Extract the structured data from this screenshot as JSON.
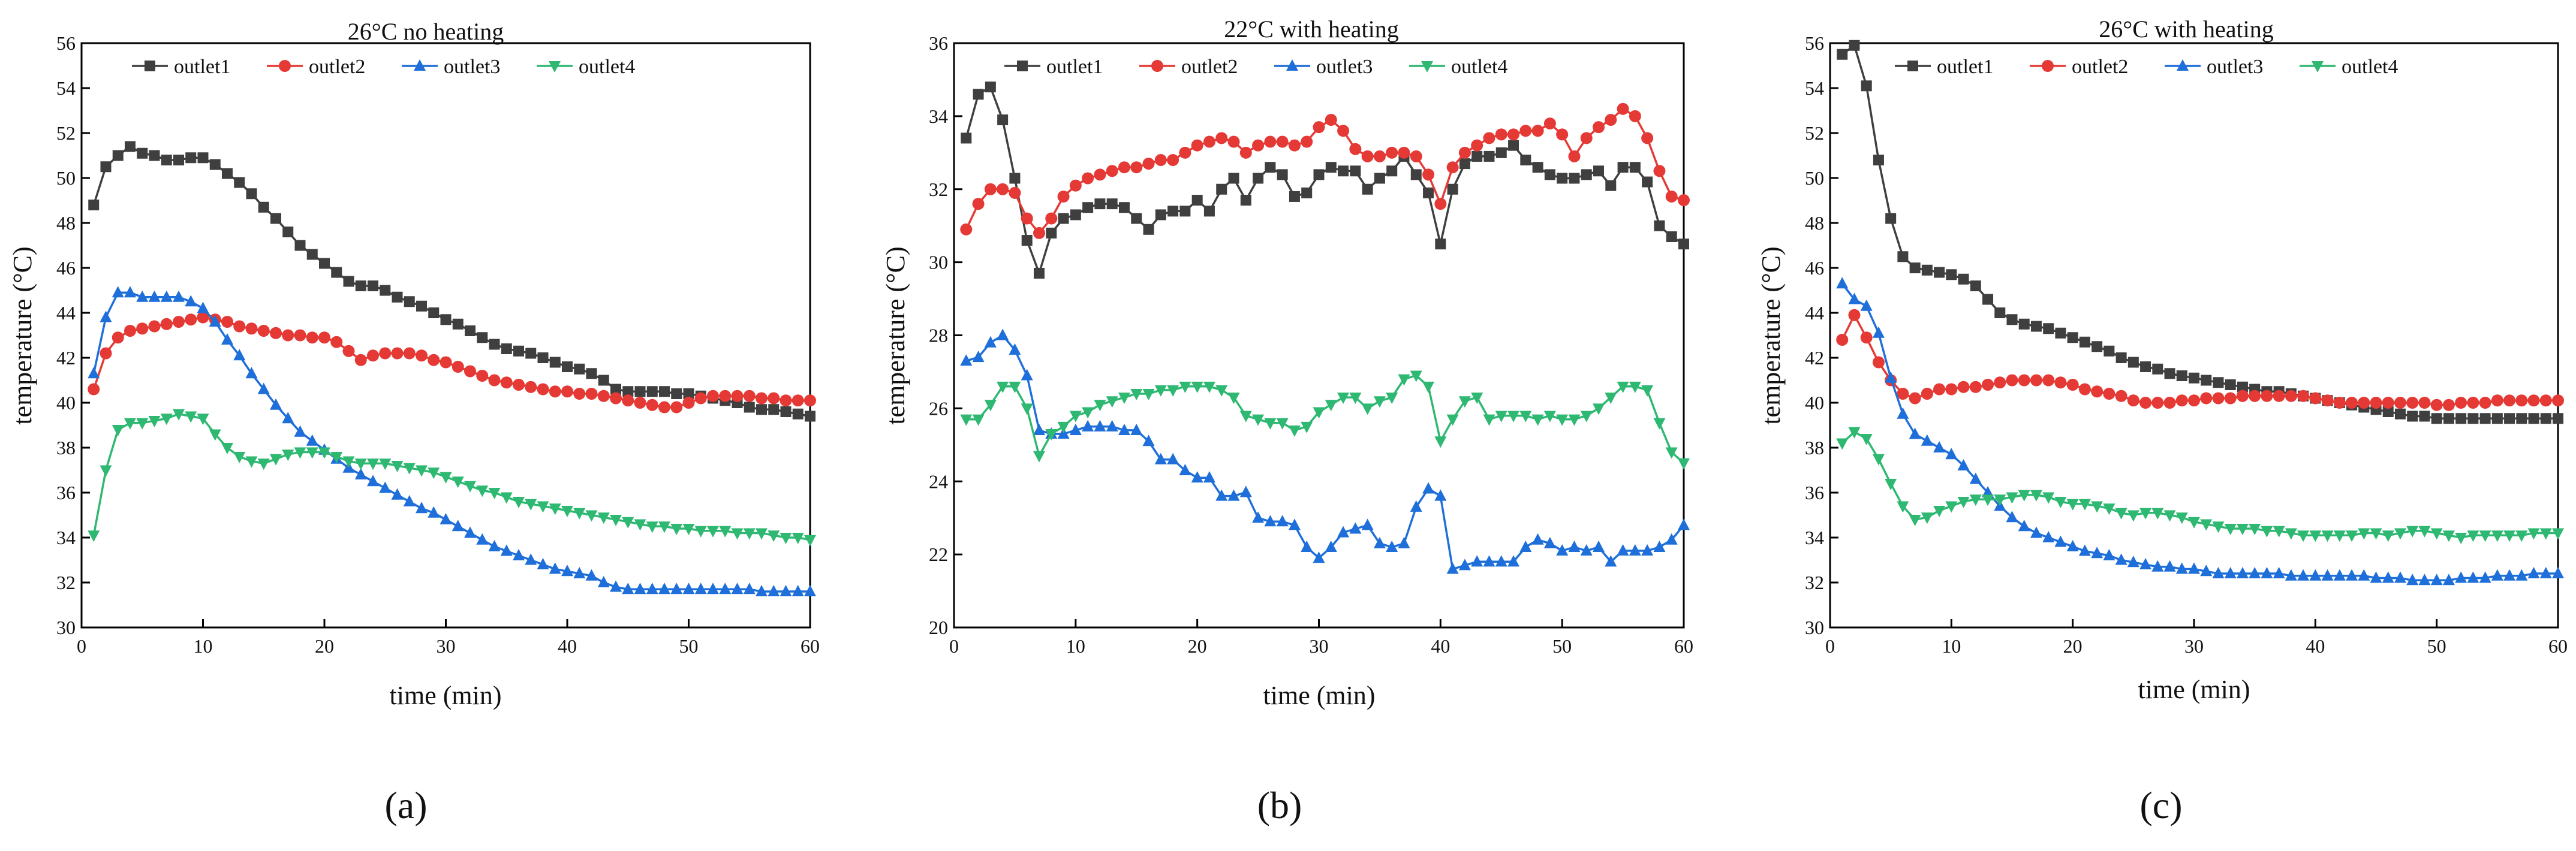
{
  "colors": {
    "outlet1": "#3f3f3f",
    "outlet2": "#e53935",
    "outlet3": "#1e6fd9",
    "outlet4": "#2eb872"
  },
  "chart_data": [
    {
      "type": "line",
      "panel_label": "(a)",
      "title": "26°C no heating",
      "xlabel": "time (min)",
      "ylabel": "temperature (°C)",
      "xlim": [
        0,
        60
      ],
      "ylim": [
        30,
        56
      ],
      "xticks": [
        0,
        10,
        20,
        30,
        40,
        50,
        60
      ],
      "yticks": [
        30,
        32,
        34,
        36,
        38,
        40,
        42,
        44,
        46,
        48,
        50,
        52,
        54,
        56
      ],
      "series": [
        {
          "name": "outlet1",
          "marker": "square",
          "values": [
            48.8,
            50.5,
            51.0,
            51.4,
            51.1,
            51.0,
            50.8,
            50.8,
            50.9,
            50.9,
            50.6,
            50.2,
            49.8,
            49.3,
            48.7,
            48.2,
            47.6,
            47.0,
            46.6,
            46.2,
            45.8,
            45.4,
            45.2,
            45.2,
            45.0,
            44.7,
            44.5,
            44.3,
            44.0,
            43.7,
            43.5,
            43.2,
            42.9,
            42.6,
            42.4,
            42.3,
            42.2,
            42.0,
            41.8,
            41.6,
            41.5,
            41.3,
            41.0,
            40.6,
            40.5,
            40.5,
            40.5,
            40.5,
            40.4,
            40.4,
            40.3,
            40.2,
            40.1,
            40.0,
            39.8,
            39.7,
            39.7,
            39.6,
            39.5,
            39.4
          ]
        },
        {
          "name": "outlet2",
          "marker": "circle",
          "values": [
            40.6,
            42.2,
            42.9,
            43.2,
            43.3,
            43.4,
            43.5,
            43.6,
            43.7,
            43.8,
            43.7,
            43.6,
            43.4,
            43.3,
            43.2,
            43.1,
            43.0,
            43.0,
            42.9,
            42.9,
            42.7,
            42.3,
            41.9,
            42.1,
            42.2,
            42.2,
            42.2,
            42.1,
            41.9,
            41.8,
            41.6,
            41.4,
            41.2,
            41.0,
            40.9,
            40.8,
            40.7,
            40.6,
            40.5,
            40.5,
            40.4,
            40.4,
            40.3,
            40.2,
            40.1,
            40.0,
            39.9,
            39.8,
            39.8,
            40.0,
            40.2,
            40.3,
            40.3,
            40.3,
            40.3,
            40.2,
            40.2,
            40.1,
            40.1,
            40.1
          ]
        },
        {
          "name": "outlet3",
          "marker": "triangle-up",
          "values": [
            41.3,
            43.8,
            44.9,
            44.9,
            44.7,
            44.7,
            44.7,
            44.7,
            44.5,
            44.2,
            43.6,
            42.8,
            42.1,
            41.3,
            40.6,
            39.9,
            39.3,
            38.7,
            38.3,
            37.9,
            37.5,
            37.1,
            36.8,
            36.5,
            36.2,
            35.9,
            35.6,
            35.3,
            35.1,
            34.8,
            34.5,
            34.2,
            33.9,
            33.6,
            33.4,
            33.2,
            33.0,
            32.8,
            32.6,
            32.5,
            32.4,
            32.3,
            32.0,
            31.8,
            31.7,
            31.7,
            31.7,
            31.7,
            31.7,
            31.7,
            31.7,
            31.7,
            31.7,
            31.7,
            31.7,
            31.6,
            31.6,
            31.6,
            31.6,
            31.6
          ]
        },
        {
          "name": "outlet4",
          "marker": "triangle-down",
          "values": [
            34.1,
            37.0,
            38.8,
            39.1,
            39.1,
            39.2,
            39.3,
            39.5,
            39.4,
            39.3,
            38.6,
            38.0,
            37.6,
            37.4,
            37.3,
            37.5,
            37.7,
            37.8,
            37.8,
            37.8,
            37.6,
            37.4,
            37.3,
            37.3,
            37.3,
            37.2,
            37.1,
            37.0,
            36.9,
            36.7,
            36.5,
            36.3,
            36.1,
            36.0,
            35.8,
            35.6,
            35.5,
            35.4,
            35.3,
            35.2,
            35.1,
            35.0,
            34.9,
            34.8,
            34.7,
            34.6,
            34.5,
            34.5,
            34.4,
            34.4,
            34.3,
            34.3,
            34.3,
            34.2,
            34.2,
            34.2,
            34.1,
            34.0,
            34.0,
            33.9
          ]
        }
      ]
    },
    {
      "type": "line",
      "panel_label": "(b)",
      "title": "22°C with heating",
      "xlabel": "time (min)",
      "ylabel": "temperature (°C)",
      "xlim": [
        0,
        60
      ],
      "ylim": [
        20,
        36
      ],
      "xticks": [
        0,
        10,
        20,
        30,
        40,
        50,
        60
      ],
      "yticks": [
        20,
        22,
        24,
        26,
        28,
        30,
        32,
        34,
        36
      ],
      "series": [
        {
          "name": "outlet1",
          "marker": "square",
          "values": [
            33.4,
            34.6,
            34.8,
            33.9,
            32.3,
            30.6,
            29.7,
            30.8,
            31.2,
            31.3,
            31.5,
            31.6,
            31.6,
            31.5,
            31.2,
            30.9,
            31.3,
            31.4,
            31.4,
            31.7,
            31.4,
            32.0,
            32.3,
            31.7,
            32.3,
            32.6,
            32.4,
            31.8,
            31.9,
            32.4,
            32.6,
            32.5,
            32.5,
            32.0,
            32.3,
            32.5,
            32.9,
            32.4,
            31.9,
            30.5,
            32.0,
            32.7,
            32.9,
            32.9,
            33.0,
            33.2,
            32.8,
            32.6,
            32.4,
            32.3,
            32.3,
            32.4,
            32.5,
            32.1,
            32.6,
            32.6,
            32.2,
            31.0,
            30.7,
            30.5
          ]
        },
        {
          "name": "outlet2",
          "marker": "circle",
          "values": [
            30.9,
            31.6,
            32.0,
            32.0,
            31.9,
            31.2,
            30.8,
            31.2,
            31.8,
            32.1,
            32.3,
            32.4,
            32.5,
            32.6,
            32.6,
            32.7,
            32.8,
            32.8,
            33.0,
            33.2,
            33.3,
            33.4,
            33.3,
            33.0,
            33.2,
            33.3,
            33.3,
            33.2,
            33.3,
            33.7,
            33.9,
            33.6,
            33.1,
            32.9,
            32.9,
            33.0,
            33.0,
            32.9,
            32.4,
            31.6,
            32.6,
            33.0,
            33.2,
            33.4,
            33.5,
            33.5,
            33.6,
            33.6,
            33.8,
            33.5,
            32.9,
            33.4,
            33.7,
            33.9,
            34.2,
            34.0,
            33.4,
            32.5,
            31.8,
            31.7
          ]
        },
        {
          "name": "outlet3",
          "marker": "triangle-up",
          "values": [
            27.3,
            27.4,
            27.8,
            28.0,
            27.6,
            26.9,
            25.4,
            25.3,
            25.3,
            25.4,
            25.5,
            25.5,
            25.5,
            25.4,
            25.4,
            25.1,
            24.6,
            24.6,
            24.3,
            24.1,
            24.1,
            23.6,
            23.6,
            23.7,
            23.0,
            22.9,
            22.9,
            22.8,
            22.2,
            21.9,
            22.2,
            22.6,
            22.7,
            22.8,
            22.3,
            22.2,
            22.3,
            23.3,
            23.8,
            23.6,
            21.6,
            21.7,
            21.8,
            21.8,
            21.8,
            21.8,
            22.2,
            22.4,
            22.3,
            22.1,
            22.2,
            22.1,
            22.2,
            21.8,
            22.1,
            22.1,
            22.1,
            22.2,
            22.4,
            22.8
          ]
        },
        {
          "name": "outlet4",
          "marker": "triangle-down",
          "values": [
            25.7,
            25.7,
            26.1,
            26.6,
            26.6,
            26.0,
            24.7,
            25.3,
            25.5,
            25.8,
            25.9,
            26.1,
            26.2,
            26.3,
            26.4,
            26.4,
            26.5,
            26.5,
            26.6,
            26.6,
            26.6,
            26.5,
            26.3,
            25.8,
            25.7,
            25.6,
            25.6,
            25.4,
            25.5,
            25.9,
            26.1,
            26.3,
            26.3,
            26.0,
            26.2,
            26.3,
            26.8,
            26.9,
            26.6,
            25.1,
            25.7,
            26.2,
            26.3,
            25.7,
            25.8,
            25.8,
            25.8,
            25.7,
            25.8,
            25.7,
            25.7,
            25.8,
            26.0,
            26.3,
            26.6,
            26.6,
            26.5,
            25.6,
            24.8,
            24.5
          ]
        }
      ]
    },
    {
      "type": "line",
      "panel_label": "(c)",
      "title": "26°C with heating",
      "xlabel": "time (min)",
      "ylabel": "temperature (°C)",
      "xlim": [
        0,
        60
      ],
      "ylim": [
        30,
        56
      ],
      "xticks": [
        0,
        10,
        20,
        30,
        40,
        50,
        60
      ],
      "yticks": [
        30,
        32,
        34,
        36,
        38,
        40,
        42,
        44,
        46,
        48,
        50,
        52,
        54,
        56
      ],
      "series": [
        {
          "name": "outlet1",
          "marker": "square",
          "values": [
            55.5,
            55.9,
            54.1,
            50.8,
            48.2,
            46.5,
            46.0,
            45.9,
            45.8,
            45.7,
            45.5,
            45.2,
            44.6,
            44.0,
            43.7,
            43.5,
            43.4,
            43.3,
            43.1,
            42.9,
            42.7,
            42.5,
            42.3,
            42.0,
            41.8,
            41.6,
            41.5,
            41.3,
            41.2,
            41.1,
            41.0,
            40.9,
            40.8,
            40.7,
            40.6,
            40.5,
            40.5,
            40.4,
            40.3,
            40.2,
            40.1,
            40.0,
            39.9,
            39.8,
            39.7,
            39.6,
            39.5,
            39.4,
            39.4,
            39.3,
            39.3,
            39.3,
            39.3,
            39.3,
            39.3,
            39.3,
            39.3,
            39.3,
            39.3,
            39.3
          ]
        },
        {
          "name": "outlet2",
          "marker": "circle",
          "values": [
            42.8,
            43.9,
            42.9,
            41.8,
            41.0,
            40.4,
            40.2,
            40.4,
            40.6,
            40.6,
            40.7,
            40.7,
            40.8,
            40.9,
            41.0,
            41.0,
            41.0,
            41.0,
            40.9,
            40.8,
            40.6,
            40.5,
            40.4,
            40.3,
            40.1,
            40.0,
            40.0,
            40.0,
            40.1,
            40.1,
            40.2,
            40.2,
            40.2,
            40.3,
            40.3,
            40.3,
            40.3,
            40.3,
            40.3,
            40.2,
            40.1,
            40.0,
            40.0,
            40.0,
            40.0,
            40.0,
            40.0,
            40.0,
            40.0,
            39.9,
            39.9,
            40.0,
            40.0,
            40.0,
            40.1,
            40.1,
            40.1,
            40.1,
            40.1,
            40.1
          ]
        },
        {
          "name": "outlet3",
          "marker": "triangle-up",
          "values": [
            45.3,
            44.6,
            44.3,
            43.1,
            41.1,
            39.5,
            38.6,
            38.3,
            38.0,
            37.7,
            37.2,
            36.6,
            36.0,
            35.4,
            34.9,
            34.5,
            34.2,
            34.0,
            33.8,
            33.6,
            33.4,
            33.3,
            33.2,
            33.0,
            32.9,
            32.8,
            32.7,
            32.7,
            32.6,
            32.6,
            32.5,
            32.4,
            32.4,
            32.4,
            32.4,
            32.4,
            32.4,
            32.3,
            32.3,
            32.3,
            32.3,
            32.3,
            32.3,
            32.3,
            32.2,
            32.2,
            32.2,
            32.1,
            32.1,
            32.1,
            32.1,
            32.2,
            32.2,
            32.2,
            32.3,
            32.3,
            32.3,
            32.4,
            32.4,
            32.4
          ]
        },
        {
          "name": "outlet4",
          "marker": "triangle-down",
          "values": [
            38.2,
            38.7,
            38.4,
            37.5,
            36.4,
            35.4,
            34.8,
            34.9,
            35.2,
            35.4,
            35.6,
            35.7,
            35.7,
            35.7,
            35.8,
            35.9,
            35.9,
            35.8,
            35.6,
            35.5,
            35.5,
            35.4,
            35.3,
            35.1,
            35.0,
            35.1,
            35.1,
            35.0,
            34.9,
            34.7,
            34.6,
            34.5,
            34.4,
            34.4,
            34.4,
            34.3,
            34.3,
            34.2,
            34.1,
            34.1,
            34.1,
            34.1,
            34.1,
            34.2,
            34.2,
            34.1,
            34.2,
            34.3,
            34.3,
            34.2,
            34.1,
            34.0,
            34.1,
            34.1,
            34.1,
            34.1,
            34.1,
            34.2,
            34.2,
            34.2
          ]
        }
      ]
    }
  ]
}
